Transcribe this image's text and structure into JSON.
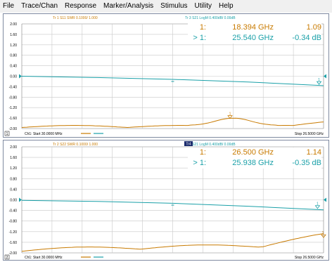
{
  "menubar": {
    "items": [
      "File",
      "Trace/Chan",
      "Response",
      "Marker/Analysis",
      "Stimulus",
      "Utility",
      "Help"
    ]
  },
  "colors": {
    "trace_orange": "#c87a00",
    "trace_teal": "#1aa0a8",
    "grid": "#c8c8c8",
    "axis_text": "#000000"
  },
  "channels": [
    {
      "trace_header_a": "Tr 1  S11 SWR 0.1000/  1.000",
      "trace_header_b": "Tr 3  S21 LogM 0.400dB/  0.00dB",
      "channel_label": "1",
      "footer_start": "Ch1: Start  30.0000 MHz",
      "footer_stop": "Stop  26.5000 GHz",
      "y_ticks": [
        "2.00",
        "1.60",
        "1.20",
        "0.80",
        "0.40",
        "0.00",
        "-0.40",
        "-0.80",
        "-1.20",
        "-1.60",
        "-2.00"
      ],
      "markers": [
        {
          "name": "1:",
          "freq": "18.394 GHz",
          "value": "1.09",
          "color": "orange"
        },
        {
          "name": "> 1:",
          "freq": "25.540 GHz",
          "value": "-0.34 dB",
          "color": "teal"
        }
      ],
      "marker_flag_label": "1"
    },
    {
      "trace_header_a": "Tr 2  S22 SWR 0.1000/  1.000",
      "trace_header_b": "Tr 4  S21 LogM 0.400dB/  0.00dB",
      "trace_tag": "Tr4",
      "channel_label": "2",
      "footer_start": "Ch1: Start  30.0000 MHz",
      "footer_stop": "Stop  26.5000 GHz",
      "y_ticks": [
        "2.00",
        "1.60",
        "1.20",
        "0.80",
        "0.40",
        "0.00",
        "-0.40",
        "-0.80",
        "-1.20",
        "-1.60",
        "-2.00"
      ],
      "markers": [
        {
          "name": "1:",
          "freq": "26.500 GHz",
          "value": "1.14",
          "color": "orange"
        },
        {
          "name": "> 1:",
          "freq": "25.938 GHz",
          "value": "-0.35 dB",
          "color": "teal"
        }
      ],
      "marker_flag_label": "1"
    }
  ]
}
